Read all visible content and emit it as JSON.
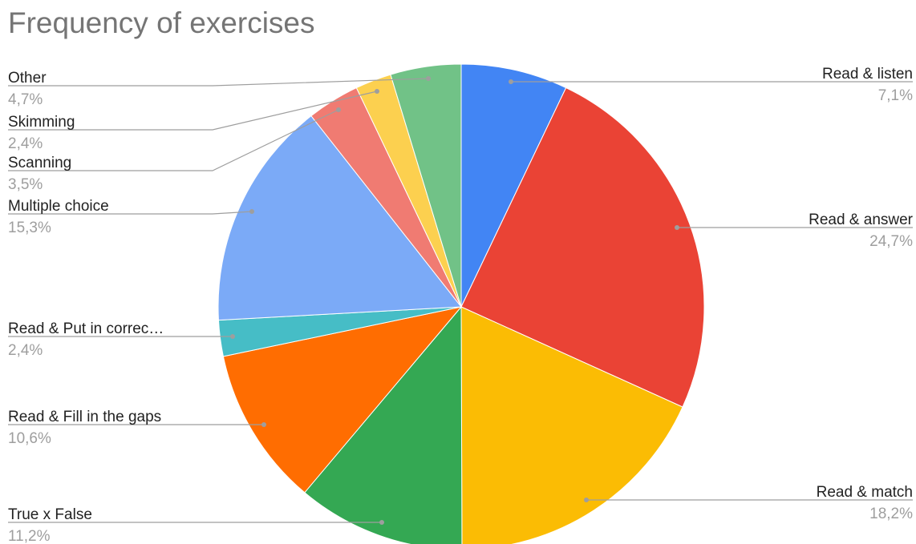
{
  "chart_data": {
    "type": "pie",
    "title": "Frequency of exercises",
    "slices": [
      {
        "label": "Read & listen",
        "display_label": "Read & listen",
        "value": 7.1,
        "value_label": "7,1%",
        "color": "#4285F4"
      },
      {
        "label": "Read & answer",
        "display_label": "Read & answer",
        "value": 24.7,
        "value_label": "24,7%",
        "color": "#EA4335"
      },
      {
        "label": "Read & match",
        "display_label": "Read & match",
        "value": 18.2,
        "value_label": "18,2%",
        "color": "#FBBC04"
      },
      {
        "label": "True x False",
        "display_label": "True x False",
        "value": 11.2,
        "value_label": "11,2%",
        "color": "#34A853"
      },
      {
        "label": "Read & Fill in the gaps",
        "display_label": "Read & Fill in the gaps",
        "value": 10.6,
        "value_label": "10,6%",
        "color": "#FF6D01"
      },
      {
        "label": "Read & Put in correc...",
        "display_label": "Read & Put in correc…",
        "value": 2.4,
        "value_label": "2,4%",
        "color": "#46BDC6"
      },
      {
        "label": "Multiple choice",
        "display_label": "Multiple choice",
        "value": 15.3,
        "value_label": "15,3%",
        "color": "#7BAAF7"
      },
      {
        "label": "Scanning",
        "display_label": "Scanning",
        "value": 3.5,
        "value_label": "3,5%",
        "color": "#F07B72"
      },
      {
        "label": "Skimming",
        "display_label": "Skimming",
        "value": 2.4,
        "value_label": "2,4%",
        "color": "#FCD04F"
      },
      {
        "label": "Other",
        "display_label": "Other",
        "value": 4.7,
        "value_label": "4,7%",
        "color": "#71C287"
      }
    ],
    "start_angle": "12 o'clock, clockwise",
    "legend": "leader-line labels"
  }
}
